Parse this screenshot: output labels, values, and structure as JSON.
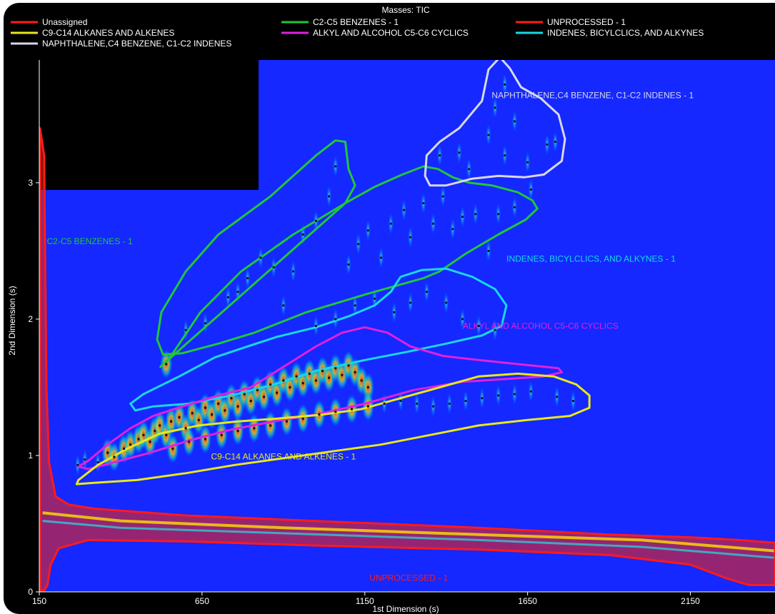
{
  "chart_data": {
    "type": "heatmap",
    "title": "Masses: TIC",
    "xlabel": "1st Dimension (s)",
    "ylabel": "2nd Dimension (s)",
    "xlim": [
      150,
      2410
    ],
    "ylim": [
      0,
      3.9
    ],
    "x_ticks": [
      150,
      650,
      1150,
      1650,
      2150
    ],
    "y_ticks": [
      0,
      1,
      2,
      3
    ],
    "legend": {
      "placement": "top",
      "entries": [
        {
          "name": "Unassigned",
          "color": "#ff1a1a"
        },
        {
          "name": "C2-C5 BENZENES - 1",
          "color": "#21c63a"
        },
        {
          "name": "UNPROCESSED - 1",
          "color": "#ff1a1a"
        },
        {
          "name": "C9-C14 ALKANES AND ALKENES",
          "color": "#e8e81a"
        },
        {
          "name": "ALKYL AND ALCOHOL C5-C6 CYCLICS",
          "color": "#e020e0"
        },
        {
          "name": "INDENES, BICYLCLICS, AND ALKYNES",
          "color": "#19d7e6"
        },
        {
          "name": "NAPHTHALENE,C4 BENZENE, C1-C2 INDENES",
          "color": "#d8d8e8"
        }
      ]
    },
    "regions": [
      {
        "label": "C2-C5 BENZENES - 1",
        "color": "#21c63a",
        "label_pos": [
          305,
          2.55
        ],
        "polygon": [
          [
            522,
            1.65
          ],
          [
            552,
            1.72
          ],
          [
            645,
            2.05
          ],
          [
            770,
            2.35
          ],
          [
            930,
            2.62
          ],
          [
            1090,
            2.85
          ],
          [
            1180,
            2.97
          ],
          [
            1265,
            3.06
          ],
          [
            1330,
            3.12
          ],
          [
            1375,
            3.1
          ],
          [
            1420,
            3.04
          ],
          [
            1470,
            3.0
          ],
          [
            1540,
            2.98
          ],
          [
            1620,
            2.93
          ],
          [
            1665,
            2.87
          ],
          [
            1680,
            2.81
          ],
          [
            1645,
            2.73
          ],
          [
            1560,
            2.62
          ],
          [
            1460,
            2.48
          ],
          [
            1380,
            2.35
          ],
          [
            1330,
            2.3
          ],
          [
            1255,
            2.25
          ],
          [
            1150,
            2.18
          ],
          [
            970,
            2.05
          ],
          [
            810,
            1.9
          ],
          [
            700,
            1.82
          ],
          [
            590,
            1.75
          ],
          [
            530,
            1.74
          ],
          [
            512,
            1.85
          ],
          [
            525,
            2.05
          ],
          [
            600,
            2.35
          ],
          [
            700,
            2.62
          ],
          [
            860,
            2.9
          ],
          [
            1000,
            3.2
          ],
          [
            1060,
            3.31
          ],
          [
            1090,
            3.3
          ],
          [
            1100,
            3.1
          ],
          [
            1120,
            2.98
          ],
          [
            1090,
            2.85
          ]
        ]
      },
      {
        "label": "NAPHTHALENE,C4 BENZENE, C1-C2 INDENES - 1",
        "color": "#d8d8e8",
        "label_pos": [
          1850,
          3.62
        ],
        "polygon": [
          [
            1335,
            3.05
          ],
          [
            1350,
            2.98
          ],
          [
            1400,
            2.98
          ],
          [
            1480,
            3.03
          ],
          [
            1560,
            3.05
          ],
          [
            1640,
            3.04
          ],
          [
            1700,
            3.06
          ],
          [
            1755,
            3.16
          ],
          [
            1765,
            3.32
          ],
          [
            1745,
            3.5
          ],
          [
            1690,
            3.62
          ],
          [
            1630,
            3.7
          ],
          [
            1595,
            3.84
          ],
          [
            1565,
            3.92
          ],
          [
            1530,
            3.83
          ],
          [
            1510,
            3.6
          ],
          [
            1440,
            3.4
          ],
          [
            1380,
            3.3
          ],
          [
            1340,
            3.2
          ]
        ]
      },
      {
        "label": "INDENES, BICYLCLICS, AND ALKYNES - 1",
        "color": "#19d7e6",
        "label_pos": [
          1845,
          2.42
        ],
        "polygon": [
          [
            430,
            1.38
          ],
          [
            470,
            1.45
          ],
          [
            580,
            1.58
          ],
          [
            690,
            1.72
          ],
          [
            790,
            1.8
          ],
          [
            880,
            1.87
          ],
          [
            1000,
            1.94
          ],
          [
            1100,
            2.02
          ],
          [
            1180,
            2.1
          ],
          [
            1230,
            2.2
          ],
          [
            1260,
            2.31
          ],
          [
            1325,
            2.36
          ],
          [
            1400,
            2.37
          ],
          [
            1480,
            2.31
          ],
          [
            1550,
            2.22
          ],
          [
            1585,
            2.1
          ],
          [
            1570,
            1.95
          ],
          [
            1510,
            1.88
          ],
          [
            1400,
            1.82
          ],
          [
            1280,
            1.76
          ],
          [
            1150,
            1.7
          ],
          [
            1000,
            1.62
          ],
          [
            870,
            1.52
          ],
          [
            740,
            1.44
          ],
          [
            610,
            1.38
          ],
          [
            500,
            1.36
          ],
          [
            445,
            1.33
          ]
        ]
      },
      {
        "label": "ALKYL AND ALCOHOL C5-C6 CYCLICS",
        "color": "#e020e0",
        "label_pos": [
          1690,
          1.93
        ],
        "polygon": [
          [
            270,
            0.92
          ],
          [
            300,
            0.96
          ],
          [
            360,
            1.08
          ],
          [
            430,
            1.2
          ],
          [
            500,
            1.29
          ],
          [
            590,
            1.36
          ],
          [
            700,
            1.44
          ],
          [
            800,
            1.5
          ],
          [
            900,
            1.65
          ],
          [
            1000,
            1.8
          ],
          [
            1080,
            1.9
          ],
          [
            1150,
            1.94
          ],
          [
            1220,
            1.9
          ],
          [
            1290,
            1.8
          ],
          [
            1390,
            1.73
          ],
          [
            1500,
            1.7
          ],
          [
            1620,
            1.67
          ],
          [
            1745,
            1.64
          ],
          [
            1755,
            1.61
          ],
          [
            1700,
            1.58
          ],
          [
            1580,
            1.56
          ],
          [
            1450,
            1.54
          ],
          [
            1300,
            1.48
          ],
          [
            1150,
            1.38
          ],
          [
            1000,
            1.3
          ],
          [
            870,
            1.25
          ],
          [
            740,
            1.19
          ],
          [
            610,
            1.11
          ],
          [
            490,
            1.02
          ],
          [
            380,
            0.95
          ],
          [
            300,
            0.9
          ]
        ]
      },
      {
        "label": "C9-C14 ALKANES AND ALKENES - 1",
        "color": "#e8e81a",
        "label_pos": [
          900,
          0.97
        ],
        "polygon": [
          [
            265,
            0.79
          ],
          [
            320,
            0.8
          ],
          [
            450,
            0.82
          ],
          [
            600,
            0.87
          ],
          [
            750,
            0.93
          ],
          [
            900,
            0.98
          ],
          [
            1050,
            1.03
          ],
          [
            1200,
            1.08
          ],
          [
            1350,
            1.15
          ],
          [
            1500,
            1.22
          ],
          [
            1650,
            1.26
          ],
          [
            1780,
            1.29
          ],
          [
            1840,
            1.35
          ],
          [
            1840,
            1.44
          ],
          [
            1800,
            1.52
          ],
          [
            1730,
            1.58
          ],
          [
            1620,
            1.6
          ],
          [
            1500,
            1.58
          ],
          [
            1380,
            1.5
          ],
          [
            1260,
            1.42
          ],
          [
            1140,
            1.34
          ],
          [
            1020,
            1.3
          ],
          [
            880,
            1.27
          ],
          [
            760,
            1.25
          ],
          [
            640,
            1.22
          ],
          [
            520,
            1.16
          ],
          [
            420,
            1.05
          ],
          [
            330,
            0.93
          ],
          [
            270,
            0.82
          ]
        ]
      },
      {
        "label": "UNPROCESSED - 1",
        "color": "#ff1a1a",
        "label_pos": [
          1285,
          0.08
        ],
        "polygon": [
          [
            152,
            0.01
          ],
          [
            152,
            3.4
          ],
          [
            165,
            3.2
          ],
          [
            172,
            1.5
          ],
          [
            180,
            0.95
          ],
          [
            200,
            0.7
          ],
          [
            240,
            0.64
          ],
          [
            320,
            0.61
          ],
          [
            600,
            0.56
          ],
          [
            1000,
            0.52
          ],
          [
            1500,
            0.47
          ],
          [
            1900,
            0.42
          ],
          [
            2150,
            0.4
          ],
          [
            2300,
            0.38
          ],
          [
            2410,
            0.36
          ],
          [
            2410,
            0.05
          ],
          [
            2330,
            0.05
          ],
          [
            2260,
            0.1
          ],
          [
            2150,
            0.2
          ],
          [
            1900,
            0.27
          ],
          [
            1500,
            0.31
          ],
          [
            1000,
            0.34
          ],
          [
            600,
            0.37
          ],
          [
            300,
            0.38
          ],
          [
            210,
            0.32
          ],
          [
            185,
            0.2
          ],
          [
            175,
            0.05
          ],
          [
            165,
            0.01
          ]
        ]
      }
    ],
    "peaks": [
      [
        268,
        0.93
      ],
      [
        290,
        0.97
      ],
      [
        330,
        0.95
      ],
      [
        360,
        1.02
      ],
      [
        380,
        0.99
      ],
      [
        410,
        1.05
      ],
      [
        430,
        1.08
      ],
      [
        455,
        1.12
      ],
      [
        470,
        1.15
      ],
      [
        490,
        1.1
      ],
      [
        505,
        1.18
      ],
      [
        520,
        1.22
      ],
      [
        540,
        1.15
      ],
      [
        555,
        1.25
      ],
      [
        580,
        1.28
      ],
      [
        600,
        1.2
      ],
      [
        620,
        1.31
      ],
      [
        640,
        1.26
      ],
      [
        660,
        1.35
      ],
      [
        680,
        1.3
      ],
      [
        700,
        1.38
      ],
      [
        720,
        1.33
      ],
      [
        740,
        1.42
      ],
      [
        760,
        1.36
      ],
      [
        780,
        1.45
      ],
      [
        800,
        1.4
      ],
      [
        820,
        1.48
      ],
      [
        840,
        1.43
      ],
      [
        860,
        1.52
      ],
      [
        880,
        1.46
      ],
      [
        900,
        1.55
      ],
      [
        920,
        1.5
      ],
      [
        940,
        1.58
      ],
      [
        960,
        1.53
      ],
      [
        980,
        1.6
      ],
      [
        1000,
        1.55
      ],
      [
        1020,
        1.62
      ],
      [
        1040,
        1.57
      ],
      [
        1060,
        1.64
      ],
      [
        1080,
        1.59
      ],
      [
        1100,
        1.66
      ],
      [
        1120,
        1.61
      ],
      [
        1140,
        1.55
      ],
      [
        1160,
        1.5
      ],
      [
        560,
        1.05
      ],
      [
        610,
        1.1
      ],
      [
        660,
        1.12
      ],
      [
        710,
        1.15
      ],
      [
        760,
        1.18
      ],
      [
        810,
        1.2
      ],
      [
        860,
        1.22
      ],
      [
        910,
        1.25
      ],
      [
        960,
        1.27
      ],
      [
        1010,
        1.3
      ],
      [
        1060,
        1.32
      ],
      [
        1110,
        1.34
      ],
      [
        1160,
        1.36
      ],
      [
        1210,
        1.38
      ],
      [
        1260,
        1.4
      ],
      [
        1310,
        1.38
      ],
      [
        1360,
        1.36
      ],
      [
        1410,
        1.38
      ],
      [
        1460,
        1.4
      ],
      [
        1510,
        1.42
      ],
      [
        1560,
        1.44
      ],
      [
        1610,
        1.45
      ],
      [
        1660,
        1.47
      ],
      [
        1740,
        1.43
      ],
      [
        1790,
        1.4
      ],
      [
        540,
        1.67
      ],
      [
        600,
        1.92
      ],
      [
        660,
        1.97
      ],
      [
        730,
        2.16
      ],
      [
        760,
        2.2
      ],
      [
        790,
        2.3
      ],
      [
        830,
        2.45
      ],
      [
        870,
        2.38
      ],
      [
        900,
        2.1
      ],
      [
        930,
        2.35
      ],
      [
        960,
        2.62
      ],
      [
        1000,
        2.72
      ],
      [
        1040,
        2.9
      ],
      [
        1060,
        3.12
      ],
      [
        1100,
        2.4
      ],
      [
        1130,
        2.55
      ],
      [
        1160,
        2.65
      ],
      [
        1200,
        2.45
      ],
      [
        1230,
        2.7
      ],
      [
        1270,
        2.8
      ],
      [
        1290,
        2.6
      ],
      [
        1330,
        2.85
      ],
      [
        1360,
        2.7
      ],
      [
        1390,
        2.9
      ],
      [
        1420,
        2.66
      ],
      [
        1450,
        2.75
      ],
      [
        1490,
        2.77
      ],
      [
        1530,
        2.5
      ],
      [
        1560,
        2.77
      ],
      [
        1610,
        2.82
      ],
      [
        1660,
        2.95
      ],
      [
        1380,
        3.2
      ],
      [
        1440,
        3.22
      ],
      [
        1470,
        3.1
      ],
      [
        1530,
        3.35
      ],
      [
        1550,
        3.55
      ],
      [
        1580,
        3.2
      ],
      [
        1610,
        3.45
      ],
      [
        1650,
        3.15
      ],
      [
        1710,
        3.28
      ],
      [
        1735,
        3.3
      ],
      [
        1580,
        3.72
      ],
      [
        1000,
        1.95
      ],
      [
        1060,
        2.0
      ],
      [
        1120,
        2.1
      ],
      [
        1180,
        2.15
      ],
      [
        1240,
        2.05
      ],
      [
        1290,
        2.12
      ],
      [
        1340,
        2.2
      ],
      [
        1400,
        2.12
      ],
      [
        1450,
        2.0
      ],
      [
        1500,
        1.95
      ],
      [
        1550,
        1.92
      ]
    ]
  }
}
